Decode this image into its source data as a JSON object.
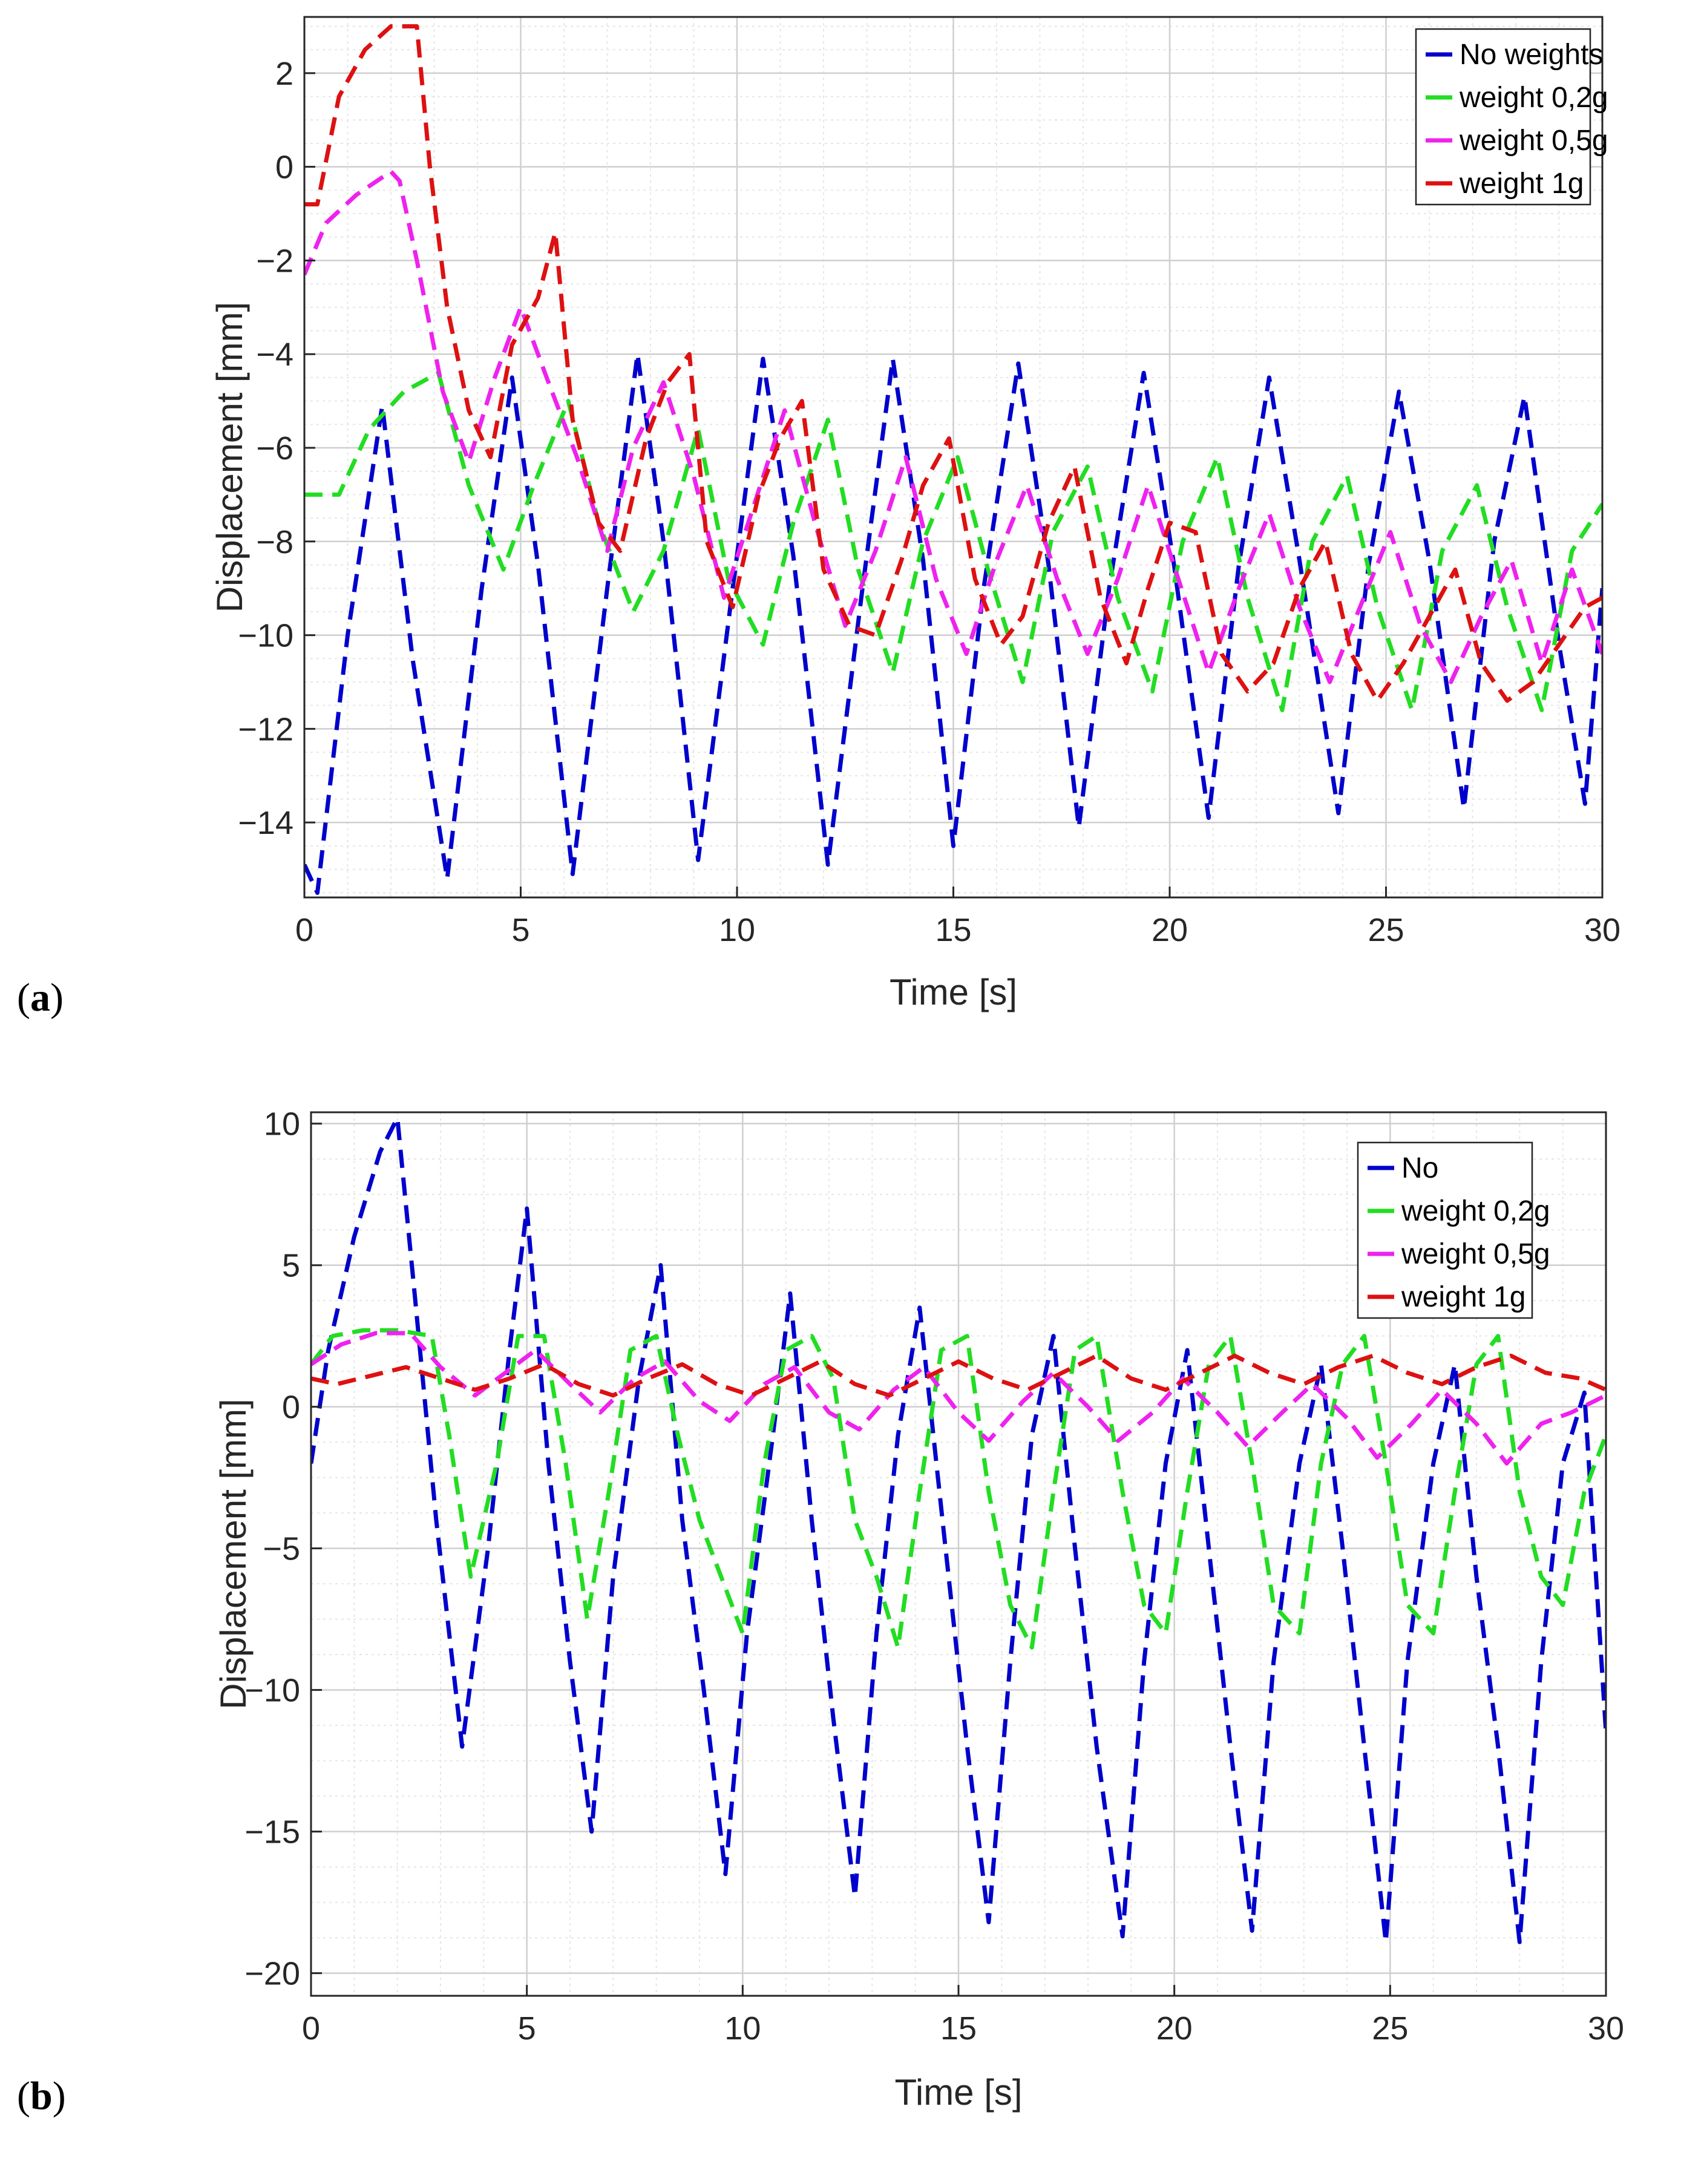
{
  "chart_data": [
    {
      "panel_label": "a",
      "type": "line",
      "line_style": "dashed",
      "title": "",
      "xlabel": "Time [s]",
      "ylabel": "Displacement [mm]",
      "xlim": [
        0,
        30
      ],
      "ylim": [
        -15.6,
        3.2
      ],
      "xticks": [
        0,
        5,
        10,
        15,
        20,
        25,
        30
      ],
      "xtick_labels": [
        "0",
        "5",
        "10",
        "15",
        "20",
        "25",
        "30"
      ],
      "yticks": [
        2,
        0,
        -2,
        -4,
        -6,
        -8,
        -10,
        -12,
        -14
      ],
      "ytick_labels": [
        "2",
        "0",
        "−2",
        "−4",
        "−6",
        "−8",
        "−10",
        "−12",
        "−14"
      ],
      "grid": true,
      "minor_grid": true,
      "legend_position": "top-right",
      "series": [
        {
          "name": "No weights",
          "color": "#0000cc",
          "x": [
            0,
            0.3,
            1.0,
            1.8,
            2.5,
            3.3,
            4.1,
            4.8,
            5.4,
            6.2,
            7.0,
            7.7,
            8.3,
            9.1,
            9.9,
            10.6,
            11.3,
            12.1,
            12.9,
            13.6,
            14.3,
            15.0,
            15.7,
            16.5,
            17.2,
            17.9,
            18.6,
            19.4,
            20.1,
            20.9,
            21.6,
            22.3,
            23.0,
            23.9,
            24.6,
            25.3,
            26.0,
            26.8,
            27.5,
            28.2,
            29.0,
            29.6,
            30.0
          ],
          "y": [
            -14.9,
            -15.5,
            -10.0,
            -5.1,
            -10.5,
            -15.2,
            -9.0,
            -4.5,
            -8.5,
            -15.1,
            -9.0,
            -4.0,
            -8.0,
            -14.8,
            -9.0,
            -4.1,
            -8.3,
            -14.9,
            -9.0,
            -4.1,
            -8.4,
            -14.5,
            -9.0,
            -4.2,
            -8.5,
            -14.1,
            -9.0,
            -4.4,
            -8.5,
            -13.9,
            -8.5,
            -4.5,
            -8.4,
            -13.8,
            -8.5,
            -4.8,
            -8.4,
            -13.7,
            -8.0,
            -4.9,
            -10.2,
            -13.6,
            -9.0
          ]
        },
        {
          "name": "weight 0,2g",
          "color": "#22dd22",
          "x": [
            0,
            0.8,
            1.5,
            2.3,
            3.1,
            3.8,
            4.6,
            5.3,
            6.1,
            6.8,
            7.6,
            8.3,
            9.1,
            9.8,
            10.6,
            11.3,
            12.1,
            12.8,
            13.6,
            14.3,
            15.1,
            15.8,
            16.6,
            17.3,
            18.1,
            18.8,
            19.6,
            20.3,
            21.1,
            21.8,
            22.6,
            23.3,
            24.1,
            24.8,
            25.6,
            26.3,
            27.1,
            27.8,
            28.6,
            29.3,
            30.0
          ],
          "y": [
            -7.0,
            -7.0,
            -5.6,
            -4.8,
            -4.4,
            -6.8,
            -8.6,
            -6.8,
            -5.0,
            -7.6,
            -9.5,
            -8.2,
            -5.6,
            -8.8,
            -10.2,
            -7.6,
            -5.4,
            -8.6,
            -10.8,
            -8.0,
            -6.2,
            -8.6,
            -11.0,
            -7.8,
            -6.4,
            -9.2,
            -11.2,
            -8.0,
            -6.2,
            -9.2,
            -11.6,
            -8.0,
            -6.6,
            -9.4,
            -11.6,
            -8.2,
            -6.8,
            -9.4,
            -11.6,
            -8.2,
            -7.2
          ]
        },
        {
          "name": "weight 0,5g",
          "color": "#ee22ee",
          "x": [
            0,
            0.5,
            1.2,
            2.0,
            2.2,
            2.6,
            3.2,
            3.8,
            4.4,
            5.0,
            5.6,
            6.3,
            7.0,
            7.6,
            8.3,
            9.0,
            9.7,
            10.4,
            11.1,
            11.8,
            12.5,
            13.2,
            13.9,
            14.6,
            15.3,
            16.0,
            16.7,
            17.4,
            18.1,
            18.8,
            19.5,
            20.2,
            20.9,
            21.6,
            22.3,
            23.0,
            23.7,
            24.4,
            25.1,
            25.8,
            26.5,
            27.2,
            27.9,
            28.6,
            29.3,
            30.0
          ],
          "y": [
            -2.3,
            -1.2,
            -0.6,
            -0.1,
            -0.3,
            -2.0,
            -4.8,
            -6.3,
            -4.5,
            -3.0,
            -4.5,
            -6.2,
            -8.2,
            -6.0,
            -4.6,
            -6.6,
            -9.2,
            -7.2,
            -5.2,
            -7.6,
            -9.8,
            -8.2,
            -6.2,
            -8.8,
            -10.4,
            -8.4,
            -6.8,
            -8.8,
            -10.4,
            -8.8,
            -6.8,
            -8.8,
            -10.8,
            -9.0,
            -7.4,
            -9.4,
            -11.0,
            -9.4,
            -7.8,
            -9.8,
            -11.0,
            -9.6,
            -8.4,
            -10.6,
            -8.6,
            -10.4
          ]
        },
        {
          "name": "weight 1g",
          "color": "#dd1111",
          "x": [
            0,
            0.3,
            0.8,
            1.4,
            2.0,
            2.6,
            2.9,
            3.3,
            3.8,
            4.3,
            4.8,
            5.4,
            5.8,
            6.2,
            6.8,
            7.3,
            7.9,
            8.4,
            8.9,
            9.3,
            9.9,
            10.5,
            11.0,
            11.5,
            12.0,
            12.6,
            13.2,
            13.8,
            14.3,
            14.9,
            15.5,
            16.1,
            16.6,
            17.2,
            17.8,
            18.4,
            19.0,
            19.5,
            20.0,
            20.6,
            21.2,
            21.8,
            22.4,
            23.0,
            23.6,
            24.2,
            24.8,
            25.4,
            26.0,
            26.6,
            27.2,
            27.8,
            28.4,
            29.0,
            29.6,
            30.0
          ],
          "y": [
            -0.8,
            -0.8,
            1.5,
            2.5,
            3.0,
            3.0,
            0.0,
            -3.0,
            -5.2,
            -6.2,
            -3.8,
            -2.8,
            -1.4,
            -5.4,
            -7.6,
            -8.2,
            -5.8,
            -4.6,
            -4.0,
            -8.0,
            -9.4,
            -7.0,
            -5.8,
            -5.0,
            -8.6,
            -9.8,
            -10.0,
            -8.4,
            -6.8,
            -5.8,
            -8.8,
            -10.2,
            -9.6,
            -7.6,
            -6.4,
            -9.2,
            -10.6,
            -9.0,
            -7.6,
            -7.8,
            -10.4,
            -11.2,
            -10.6,
            -9.0,
            -8.0,
            -10.4,
            -11.4,
            -10.6,
            -9.6,
            -8.6,
            -10.6,
            -11.4,
            -11.0,
            -10.2,
            -9.4,
            -9.2
          ]
        }
      ]
    },
    {
      "panel_label": "b",
      "type": "line",
      "line_style": "dashed",
      "title": "",
      "xlabel": "Time [s]",
      "ylabel": "Displacement [mm]",
      "xlim": [
        0,
        30
      ],
      "ylim": [
        -20.8,
        10.4
      ],
      "xticks": [
        0,
        5,
        10,
        15,
        20,
        25,
        30
      ],
      "xtick_labels": [
        "0",
        "5",
        "10",
        "15",
        "20",
        "25",
        "30"
      ],
      "yticks": [
        10,
        5,
        0,
        -5,
        -10,
        -15,
        -20
      ],
      "ytick_labels": [
        "10",
        "5",
        "0",
        "−5",
        "−10",
        "−15",
        "−20"
      ],
      "grid": true,
      "minor_grid": true,
      "legend_position": "top-right",
      "series": [
        {
          "name": "No",
          "color": "#0000cc",
          "x": [
            0,
            0.4,
            1.0,
            1.6,
            2.0,
            2.4,
            2.9,
            3.5,
            4.1,
            4.6,
            5.0,
            5.5,
            6.0,
            6.5,
            7.0,
            7.6,
            8.1,
            8.6,
            9.1,
            9.6,
            10.1,
            10.7,
            11.1,
            11.6,
            12.1,
            12.6,
            13.1,
            13.6,
            14.1,
            14.7,
            15.2,
            15.7,
            16.2,
            16.7,
            17.2,
            17.7,
            18.2,
            18.8,
            19.3,
            19.8,
            20.3,
            20.8,
            21.3,
            21.8,
            22.3,
            22.9,
            23.4,
            23.9,
            24.4,
            24.9,
            25.4,
            26.0,
            26.5,
            27.0,
            27.5,
            28.0,
            28.5,
            29.0,
            29.5,
            30.0
          ],
          "y": [
            -2.0,
            2.0,
            6.0,
            9.0,
            10.2,
            4.0,
            -4.0,
            -12.0,
            -5.0,
            2.0,
            7.0,
            -2.0,
            -9.0,
            -15.0,
            -6.0,
            1.0,
            5.0,
            -4.0,
            -10.0,
            -16.5,
            -8.0,
            -1.0,
            4.0,
            -4.0,
            -11.0,
            -17.3,
            -8.0,
            -1.0,
            3.5,
            -5.0,
            -12.0,
            -18.2,
            -9.0,
            -1.0,
            2.5,
            -5.0,
            -12.0,
            -18.7,
            -9.0,
            -2.0,
            2.0,
            -5.0,
            -12.0,
            -18.5,
            -9.0,
            -2.0,
            1.5,
            -5.0,
            -12.0,
            -18.9,
            -9.0,
            -2.0,
            1.5,
            -6.0,
            -12.0,
            -18.9,
            -9.0,
            -2.0,
            0.5,
            -11.5
          ]
        },
        {
          "name": "weight 0,2g",
          "color": "#22dd22",
          "x": [
            0,
            0.5,
            1.2,
            2.0,
            2.8,
            3.2,
            3.7,
            4.3,
            4.8,
            5.4,
            5.9,
            6.4,
            6.9,
            7.4,
            8.0,
            8.5,
            9.0,
            9.5,
            10.0,
            10.5,
            11.0,
            11.6,
            12.1,
            12.6,
            13.1,
            13.6,
            14.1,
            14.6,
            15.2,
            15.7,
            16.2,
            16.7,
            17.2,
            17.7,
            18.2,
            18.8,
            19.3,
            19.8,
            20.3,
            20.8,
            21.3,
            21.8,
            22.3,
            22.9,
            23.4,
            23.9,
            24.4,
            24.9,
            25.4,
            26.0,
            26.5,
            27.0,
            27.5,
            28.0,
            28.5,
            29.0,
            29.5,
            30.0
          ],
          "y": [
            1.5,
            2.5,
            2.7,
            2.7,
            2.5,
            -1.0,
            -6.0,
            -2.0,
            2.5,
            2.5,
            -2.0,
            -7.5,
            -3.0,
            2.0,
            2.5,
            -1.0,
            -4.0,
            -6.0,
            -8.0,
            -2.0,
            2.0,
            2.5,
            1.0,
            -4.0,
            -6.0,
            -8.5,
            -3.0,
            2.0,
            2.5,
            -3.0,
            -7.0,
            -8.5,
            -3.0,
            2.0,
            2.5,
            -3.0,
            -7.0,
            -8.0,
            -3.0,
            1.5,
            2.5,
            -2.0,
            -7.0,
            -8.0,
            -2.0,
            1.5,
            2.5,
            -2.0,
            -7.0,
            -8.0,
            -3.0,
            1.5,
            2.5,
            -3.0,
            -6.0,
            -7.0,
            -3.0,
            -1.0
          ]
        },
        {
          "name": "weight 0,5g",
          "color": "#ee22ee",
          "x": [
            0,
            0.7,
            1.5,
            2.3,
            3.0,
            3.8,
            4.5,
            5.2,
            6.0,
            6.7,
            7.5,
            8.2,
            9.0,
            9.7,
            10.5,
            11.2,
            12.0,
            12.7,
            13.5,
            14.2,
            15.0,
            15.7,
            16.5,
            17.2,
            18.0,
            18.7,
            19.5,
            20.2,
            21.0,
            21.7,
            22.5,
            23.2,
            24.0,
            24.7,
            25.5,
            26.2,
            27.0,
            27.7,
            28.5,
            29.2,
            30.0
          ],
          "y": [
            1.5,
            2.2,
            2.6,
            2.6,
            1.4,
            0.4,
            1.2,
            2.0,
            0.8,
            -0.2,
            1.0,
            1.6,
            0.2,
            -0.5,
            0.8,
            1.4,
            -0.2,
            -0.8,
            0.6,
            1.4,
            -0.2,
            -1.2,
            0.2,
            1.2,
            0.0,
            -1.2,
            -0.2,
            1.0,
            -0.2,
            -1.4,
            -0.2,
            0.8,
            -0.4,
            -1.8,
            -0.6,
            0.6,
            -0.6,
            -2.0,
            -0.6,
            -0.2,
            0.4
          ]
        },
        {
          "name": "weight 1g",
          "color": "#dd1111",
          "x": [
            0,
            0.6,
            1.4,
            2.2,
            3.0,
            3.8,
            4.6,
            5.4,
            6.2,
            7.0,
            7.8,
            8.6,
            9.4,
            10.2,
            11.0,
            11.8,
            12.6,
            13.4,
            14.2,
            15.0,
            15.8,
            16.6,
            17.4,
            18.2,
            19.0,
            19.8,
            20.6,
            21.4,
            22.2,
            23.0,
            23.8,
            24.6,
            25.4,
            26.2,
            27.0,
            27.8,
            28.6,
            29.4,
            30.0
          ],
          "y": [
            1.0,
            0.8,
            1.1,
            1.4,
            1.0,
            0.6,
            1.0,
            1.5,
            0.8,
            0.4,
            1.0,
            1.5,
            0.8,
            0.4,
            1.0,
            1.6,
            0.8,
            0.4,
            1.0,
            1.6,
            1.0,
            0.6,
            1.2,
            1.8,
            1.0,
            0.6,
            1.2,
            1.8,
            1.2,
            0.8,
            1.4,
            1.8,
            1.2,
            0.8,
            1.4,
            1.8,
            1.2,
            1.0,
            0.6
          ]
        }
      ]
    }
  ]
}
